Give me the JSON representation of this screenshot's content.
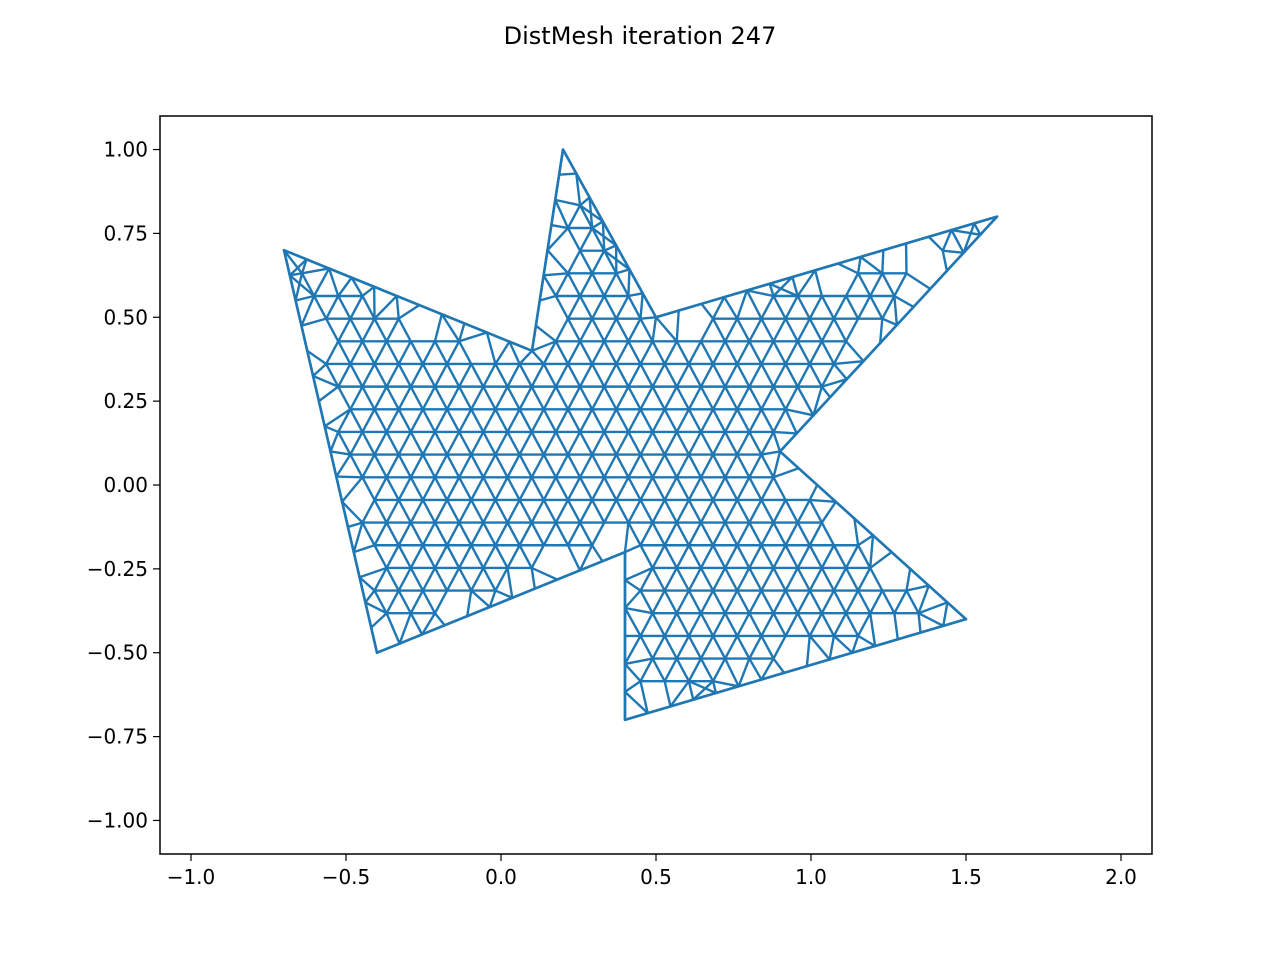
{
  "chart_data": {
    "type": "mesh",
    "title": "DistMesh iteration 247",
    "xlabel": "",
    "ylabel": "",
    "xlim": [
      -1.1,
      2.1
    ],
    "ylim": [
      -1.1,
      1.1
    ],
    "x_ticks": [
      -1.0,
      -0.5,
      0.0,
      0.5,
      1.0,
      1.5,
      2.0
    ],
    "x_tick_labels": [
      "−1.0",
      "−0.5",
      "0.0",
      "0.5",
      "1.0",
      "1.5",
      "2.0"
    ],
    "y_ticks": [
      1.0,
      0.75,
      0.5,
      0.25,
      0.0,
      -0.25,
      -0.5,
      -0.75,
      -1.0
    ],
    "y_tick_labels": [
      "1.00",
      "0.75",
      "0.50",
      "0.25",
      "0.00",
      "−0.25",
      "−0.50",
      "−0.75",
      "−1.00"
    ],
    "grid": false,
    "line_color": "#1f77b4",
    "boundary_vertices": [
      [
        -0.7,
        0.7
      ],
      [
        0.1,
        0.4
      ],
      [
        0.2,
        1.0
      ],
      [
        0.5,
        0.5
      ],
      [
        1.6,
        0.8
      ],
      [
        0.9,
        0.1
      ],
      [
        1.5,
        -0.4
      ],
      [
        0.4,
        -0.7
      ],
      [
        0.4,
        -0.2
      ],
      [
        -0.4,
        -0.5
      ]
    ]
  }
}
